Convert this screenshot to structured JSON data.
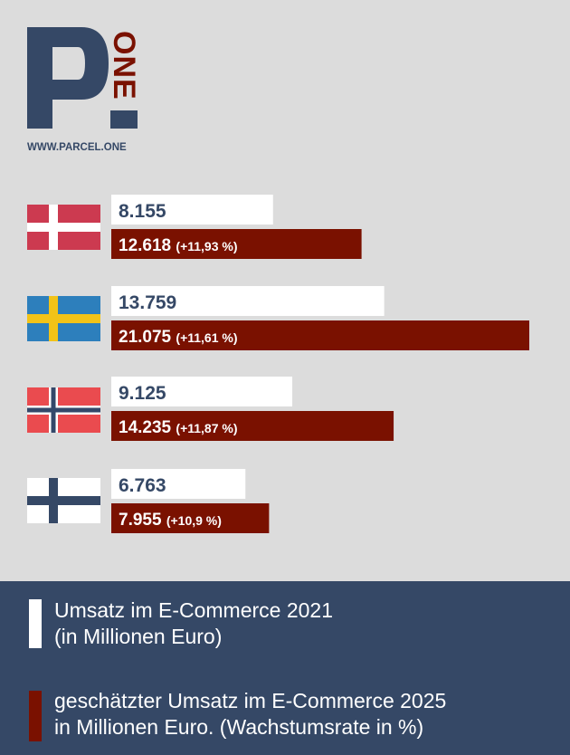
{
  "logo": {
    "letter": "P",
    "word": "ONE",
    "url": "WWW.PARCEL.ONE"
  },
  "colors": {
    "navy": "#354866",
    "bar2021": "#ffffff",
    "bar2025": "#7a1100",
    "label2021": "#354866",
    "label2025": "#ffffff"
  },
  "chart_data": {
    "type": "bar",
    "orientation": "horizontal",
    "categories": [
      "denmark-flag",
      "sweden-flag",
      "norway-flag",
      "finland-flag"
    ],
    "series": [
      {
        "name": "Umsatz im E-Commerce 2021 (in Millionen Euro)",
        "color": "#ffffff",
        "values": [
          8155,
          13759,
          9125,
          6763
        ],
        "labels": [
          "8.155",
          "13.759",
          "9.125",
          "6.763"
        ]
      },
      {
        "name": "geschätzter Umsatz im E-Commerce 2025 in Millionen Euro. (Wachstumsrate in %)",
        "color": "#7a1100",
        "values": [
          12618,
          21075,
          14235,
          7955
        ],
        "labels": [
          "12.618",
          "21.075",
          "14.235",
          "7.955"
        ],
        "growth_labels": [
          "(+11,93 %)",
          "(+11,61 %)",
          "(+11,87 %)",
          "(+10,9 %)"
        ]
      }
    ],
    "xlim": [
      0,
      21075
    ],
    "grid": false,
    "legend": "bottom"
  },
  "legend": {
    "items": [
      {
        "color": "#ffffff",
        "lines": [
          "Umsatz im E-Commerce 2021",
          "(in Millionen Euro)"
        ]
      },
      {
        "color": "#7a1100",
        "lines": [
          "geschätzter Umsatz im E-Commerce 2025",
          "in Millionen Euro. (Wachstumsrate in %)"
        ]
      }
    ]
  }
}
